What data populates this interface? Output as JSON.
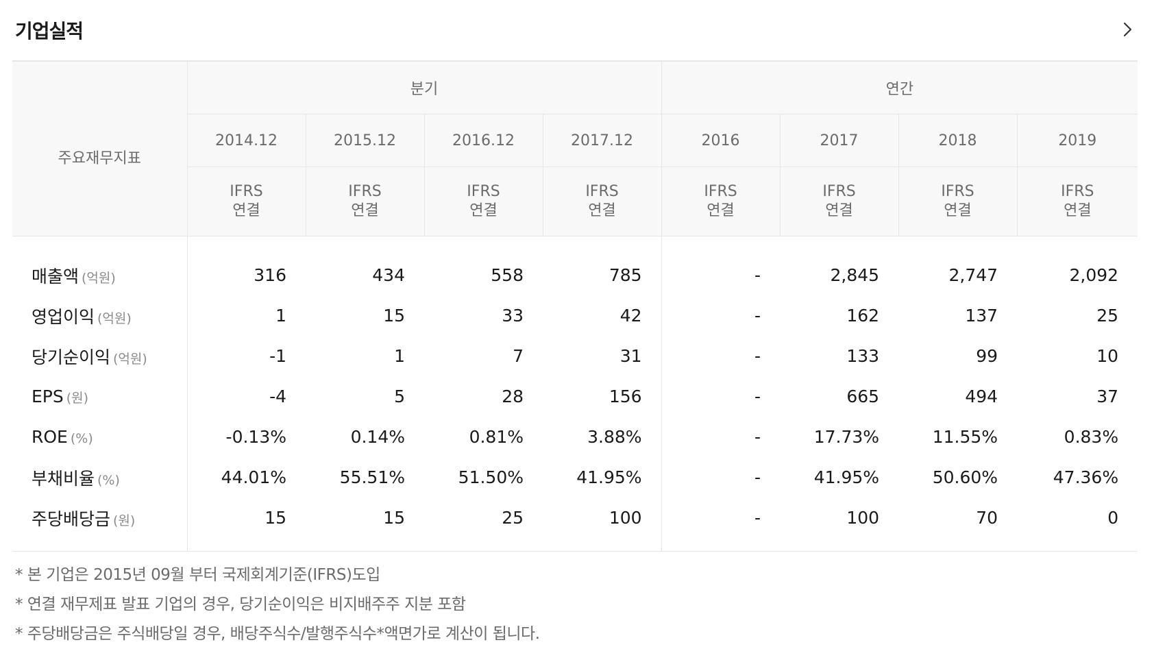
{
  "header": {
    "title": "기업실적",
    "more_icon": "chevron-right-icon"
  },
  "table": {
    "row_header_label": "주요재무지표",
    "groups": [
      {
        "label": "분기"
      },
      {
        "label": "연간"
      }
    ],
    "periods": [
      "2014.12",
      "2015.12",
      "2016.12",
      "2017.12",
      "2016",
      "2017",
      "2018",
      "2019"
    ],
    "standard": {
      "line1": "IFRS",
      "line2": "연결"
    },
    "rows": [
      {
        "name": "매출액",
        "unit": "(억원)",
        "values": [
          "316",
          "434",
          "558",
          "785",
          "-",
          "2,845",
          "2,747",
          "2,092"
        ]
      },
      {
        "name": "영업이익",
        "unit": "(억원)",
        "values": [
          "1",
          "15",
          "33",
          "42",
          "-",
          "162",
          "137",
          "25"
        ]
      },
      {
        "name": "당기순이익",
        "unit": "(억원)",
        "values": [
          "-1",
          "1",
          "7",
          "31",
          "-",
          "133",
          "99",
          "10"
        ]
      },
      {
        "name": "EPS",
        "unit": "(원)",
        "values": [
          "-4",
          "5",
          "28",
          "156",
          "-",
          "665",
          "494",
          "37"
        ]
      },
      {
        "name": "ROE",
        "unit": "(%)",
        "values": [
          "-0.13%",
          "0.14%",
          "0.81%",
          "3.88%",
          "-",
          "17.73%",
          "11.55%",
          "0.83%"
        ]
      },
      {
        "name": "부채비율",
        "unit": "(%)",
        "values": [
          "44.01%",
          "55.51%",
          "51.50%",
          "41.95%",
          "-",
          "41.95%",
          "50.60%",
          "47.36%"
        ]
      },
      {
        "name": "주당배당금",
        "unit": "(원)",
        "values": [
          "15",
          "15",
          "25",
          "100",
          "-",
          "100",
          "70",
          "0"
        ]
      }
    ]
  },
  "notes": [
    "* 본 기업은 2015년 09월 부터 국제회계기준(IFRS)도입",
    "* 연결 재무제표 발표 기업의 경우, 당기순이익은 비지배주주 지분 포함",
    "* 주당배당금은 주식배당일 경우, 배당주식수/발행주식수*액면가로 계산이 됩니다."
  ]
}
